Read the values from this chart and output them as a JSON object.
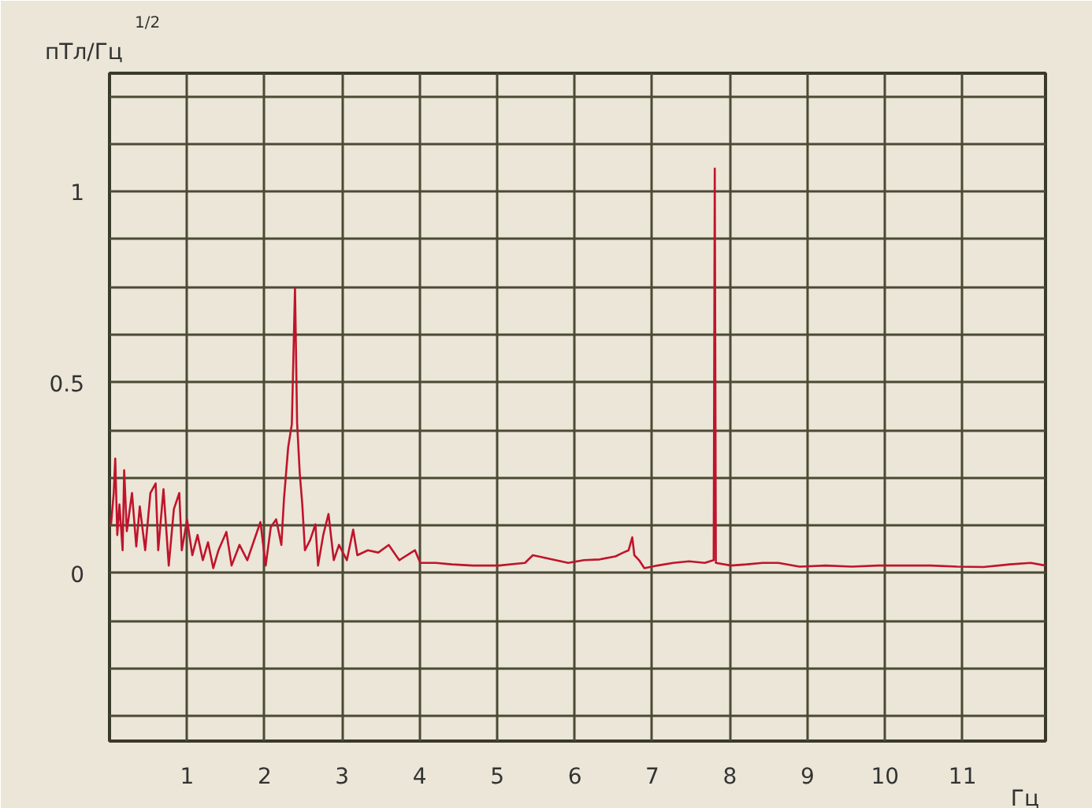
{
  "chart_data": {
    "type": "line",
    "xlabel": "Гц",
    "ylabel": "пТл/Гц$^{1/2}$",
    "x": [
      0.02,
      0.054,
      0.074,
      0.1,
      0.128,
      0.169,
      0.189,
      0.223,
      0.29,
      0.345,
      0.39,
      0.46,
      0.527,
      0.595,
      0.628,
      0.696,
      0.764,
      0.83,
      0.9,
      0.932,
      1.0,
      1.068,
      1.135,
      1.203,
      1.27,
      1.338,
      1.405,
      1.507,
      1.574,
      1.676,
      1.777,
      1.878,
      1.946,
      2.014,
      2.08,
      2.149,
      2.216,
      2.25,
      2.304,
      2.351,
      2.392,
      2.419,
      2.453,
      2.486,
      2.52,
      2.588,
      2.655,
      2.689,
      2.757,
      2.824,
      2.892,
      2.959,
      3.061,
      3.142,
      3.196,
      3.331,
      3.466,
      3.601,
      3.736,
      3.939,
      4.007,
      4.209,
      4.412,
      4.682,
      5.02,
      5.358,
      5.459,
      5.915,
      6.118,
      6.321,
      6.524,
      6.626,
      6.694,
      6.741,
      6.768,
      6.829,
      6.897,
      7.067,
      7.27,
      7.473,
      7.676,
      7.791,
      7.805,
      7.819,
      8.015,
      8.218,
      8.421,
      8.625,
      8.896,
      9.234,
      9.573,
      9.912,
      10.25,
      10.59,
      10.93,
      11.27,
      11.61,
      11.88,
      12.07
    ],
    "series": [
      {
        "color": "#c0142c",
        "values": [
          0.128,
          0.21,
          0.3,
          0.1,
          0.18,
          0.06,
          0.27,
          0.11,
          0.21,
          0.07,
          0.175,
          0.06,
          0.21,
          0.235,
          0.06,
          0.22,
          0.02,
          0.168,
          0.21,
          0.06,
          0.14,
          0.047,
          0.1,
          0.034,
          0.081,
          0.013,
          0.06,
          0.108,
          0.02,
          0.074,
          0.034,
          0.094,
          0.134,
          0.02,
          0.121,
          0.141,
          0.074,
          0.195,
          0.33,
          0.39,
          0.748,
          0.395,
          0.262,
          0.18,
          0.06,
          0.087,
          0.128,
          0.02,
          0.101,
          0.155,
          0.034,
          0.074,
          0.034,
          0.114,
          0.047,
          0.06,
          0.054,
          0.074,
          0.034,
          0.06,
          0.027,
          0.027,
          0.023,
          0.02,
          0.02,
          0.027,
          0.047,
          0.027,
          0.034,
          0.036,
          0.044,
          0.054,
          0.06,
          0.094,
          0.047,
          0.034,
          0.013,
          0.02,
          0.027,
          0.031,
          0.027,
          0.034,
          1.06,
          0.027,
          0.02,
          0.023,
          0.027,
          0.027,
          0.017,
          0.02,
          0.017,
          0.02,
          0.02,
          0.02,
          0.017,
          0.016,
          0.023,
          0.027,
          0.02
        ]
      }
    ],
    "xlim": [
      0,
      12.07
    ],
    "ylim": [
      -0.44,
      1.31
    ],
    "xticks": [
      1,
      2,
      3,
      4,
      5,
      6,
      7,
      8,
      9,
      10,
      11
    ],
    "yticks": [
      {
        "value": -0.375,
        "label": null
      },
      {
        "value": -0.25,
        "label": null
      },
      {
        "value": -0.125,
        "label": null
      },
      0,
      {
        "value": 0.125,
        "label": null
      },
      {
        "value": 0.25,
        "label": null
      },
      {
        "value": 0.375,
        "label": null
      },
      {
        "value": 0.5,
        "label": "0.5"
      },
      {
        "value": 0.625,
        "label": null
      },
      {
        "value": 0.75,
        "label": null
      },
      {
        "value": 0.875,
        "label": null
      },
      1,
      {
        "value": 1.125,
        "label": null
      },
      {
        "value": 1.25,
        "label": null
      }
    ],
    "grid": true,
    "marker": "none",
    "line_style": "solid"
  }
}
